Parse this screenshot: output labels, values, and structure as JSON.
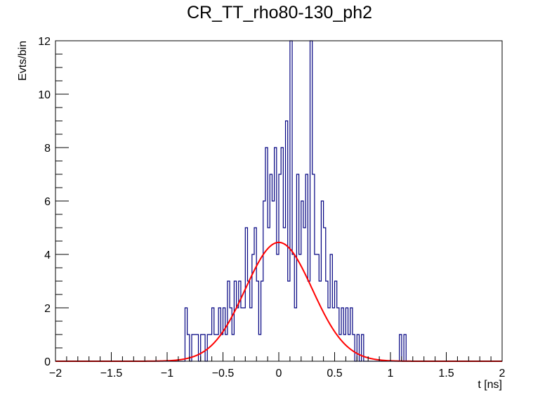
{
  "chart_data": {
    "type": "histogram",
    "title": "CR_TT_rho80-130_ph2",
    "xlabel": "t [ns]",
    "ylabel": "Evts/bin",
    "xlim": [
      -2,
      2
    ],
    "ylim": [
      0,
      12
    ],
    "x_ticks": [
      "−2",
      "−1.5",
      "−1",
      "−0.5",
      "0",
      "0.5",
      "1",
      "1.5",
      "2"
    ],
    "x_tick_values": [
      -2,
      -1.5,
      -1,
      -0.5,
      0,
      0.5,
      1,
      1.5,
      2
    ],
    "y_ticks": [
      "0",
      "2",
      "4",
      "6",
      "8",
      "10",
      "12"
    ],
    "y_tick_values": [
      0,
      2,
      4,
      6,
      8,
      10,
      12
    ],
    "grid": false,
    "bin_edges_range": [
      -2,
      2
    ],
    "bin_count": 200,
    "histogram_color": "#000080",
    "histogram_nonzero_bins": [
      {
        "x": -0.84,
        "v": 2
      },
      {
        "x": -0.82,
        "v": 1
      },
      {
        "x": -0.78,
        "v": 1
      },
      {
        "x": -0.76,
        "v": 1
      },
      {
        "x": -0.74,
        "v": 1
      },
      {
        "x": -0.7,
        "v": 1
      },
      {
        "x": -0.68,
        "v": 1
      },
      {
        "x": -0.64,
        "v": 1
      },
      {
        "x": -0.62,
        "v": 1
      },
      {
        "x": -0.6,
        "v": 2
      },
      {
        "x": -0.58,
        "v": 1
      },
      {
        "x": -0.56,
        "v": 1
      },
      {
        "x": -0.54,
        "v": 2
      },
      {
        "x": -0.52,
        "v": 1
      },
      {
        "x": -0.5,
        "v": 2
      },
      {
        "x": -0.48,
        "v": 1
      },
      {
        "x": -0.46,
        "v": 3
      },
      {
        "x": -0.44,
        "v": 2
      },
      {
        "x": -0.42,
        "v": 1
      },
      {
        "x": -0.4,
        "v": 3
      },
      {
        "x": -0.38,
        "v": 2
      },
      {
        "x": -0.36,
        "v": 3
      },
      {
        "x": -0.34,
        "v": 2
      },
      {
        "x": -0.32,
        "v": 2
      },
      {
        "x": -0.3,
        "v": 5
      },
      {
        "x": -0.28,
        "v": 3
      },
      {
        "x": -0.26,
        "v": 2
      },
      {
        "x": -0.24,
        "v": 4
      },
      {
        "x": -0.22,
        "v": 5
      },
      {
        "x": -0.2,
        "v": 3
      },
      {
        "x": -0.18,
        "v": 1
      },
      {
        "x": -0.16,
        "v": 3
      },
      {
        "x": -0.14,
        "v": 6
      },
      {
        "x": -0.12,
        "v": 8
      },
      {
        "x": -0.1,
        "v": 5
      },
      {
        "x": -0.08,
        "v": 7
      },
      {
        "x": -0.06,
        "v": 6
      },
      {
        "x": -0.04,
        "v": 8
      },
      {
        "x": -0.02,
        "v": 4
      },
      {
        "x": 0.0,
        "v": 7
      },
      {
        "x": 0.02,
        "v": 8
      },
      {
        "x": 0.04,
        "v": 5
      },
      {
        "x": 0.06,
        "v": 9
      },
      {
        "x": 0.08,
        "v": 3
      },
      {
        "x": 0.1,
        "v": 12
      },
      {
        "x": 0.12,
        "v": 4
      },
      {
        "x": 0.14,
        "v": 2
      },
      {
        "x": 0.16,
        "v": 7
      },
      {
        "x": 0.18,
        "v": 4
      },
      {
        "x": 0.2,
        "v": 6
      },
      {
        "x": 0.22,
        "v": 5
      },
      {
        "x": 0.24,
        "v": 7
      },
      {
        "x": 0.26,
        "v": 3
      },
      {
        "x": 0.28,
        "v": 12
      },
      {
        "x": 0.3,
        "v": 7
      },
      {
        "x": 0.32,
        "v": 4
      },
      {
        "x": 0.34,
        "v": 4
      },
      {
        "x": 0.36,
        "v": 3
      },
      {
        "x": 0.38,
        "v": 6
      },
      {
        "x": 0.4,
        "v": 5
      },
      {
        "x": 0.42,
        "v": 3
      },
      {
        "x": 0.44,
        "v": 2
      },
      {
        "x": 0.46,
        "v": 4
      },
      {
        "x": 0.48,
        "v": 2
      },
      {
        "x": 0.5,
        "v": 3
      },
      {
        "x": 0.52,
        "v": 2
      },
      {
        "x": 0.54,
        "v": 1
      },
      {
        "x": 0.56,
        "v": 2
      },
      {
        "x": 0.58,
        "v": 1
      },
      {
        "x": 0.6,
        "v": 2
      },
      {
        "x": 0.62,
        "v": 1
      },
      {
        "x": 0.64,
        "v": 2
      },
      {
        "x": 0.66,
        "v": 1
      },
      {
        "x": 0.7,
        "v": 1
      },
      {
        "x": 0.74,
        "v": 1
      },
      {
        "x": 1.08,
        "v": 1
      },
      {
        "x": 1.12,
        "v": 1
      }
    ],
    "fit": {
      "shape": "gaussian",
      "color": "#ff0000",
      "amplitude": 4.45,
      "mean": 0.0,
      "sigma": 0.3
    }
  }
}
